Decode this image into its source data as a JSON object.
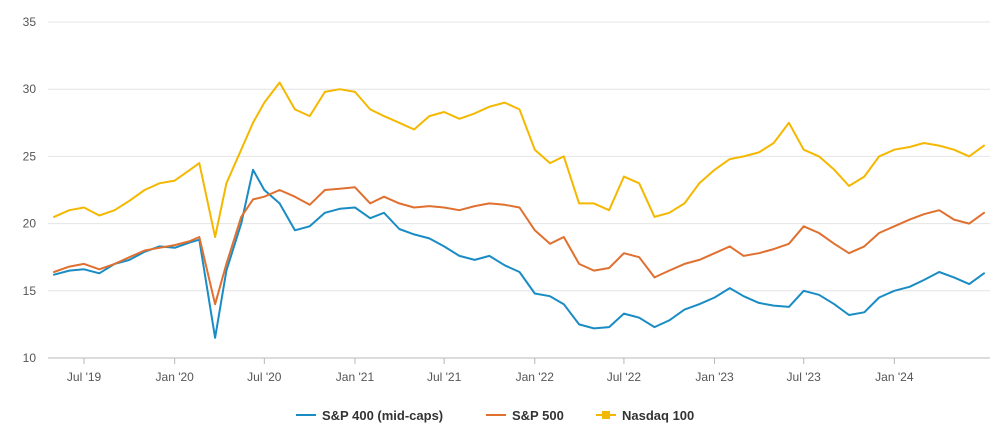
{
  "chart_data": {
    "type": "line",
    "title": "",
    "xlabel": "",
    "ylabel": "",
    "ylim": [
      10,
      35
    ],
    "yticks": [
      10,
      15,
      20,
      25,
      30,
      35
    ],
    "grid": "horizontal",
    "legend_position": "bottom-center",
    "xticks": [
      {
        "label": "Jul '19",
        "date": "2019-07-01"
      },
      {
        "label": "Jan '20",
        "date": "2020-01-01"
      },
      {
        "label": "Jul '20",
        "date": "2020-07-01"
      },
      {
        "label": "Jan '21",
        "date": "2021-01-01"
      },
      {
        "label": "Jul '21",
        "date": "2021-07-01"
      },
      {
        "label": "Jan '22",
        "date": "2022-01-01"
      },
      {
        "label": "Jul '22",
        "date": "2022-07-01"
      },
      {
        "label": "Jan '23",
        "date": "2023-01-01"
      },
      {
        "label": "Jul '23",
        "date": "2023-07-01"
      },
      {
        "label": "Jan '24",
        "date": "2024-01-01"
      }
    ],
    "x": [
      "2019-05-01",
      "2019-06-01",
      "2019-07-01",
      "2019-08-01",
      "2019-09-01",
      "2019-10-01",
      "2019-11-01",
      "2019-12-01",
      "2020-01-01",
      "2020-02-01",
      "2020-02-20",
      "2020-03-23",
      "2020-04-15",
      "2020-05-15",
      "2020-06-08",
      "2020-07-01",
      "2020-08-01",
      "2020-09-01",
      "2020-10-01",
      "2020-11-01",
      "2020-12-01",
      "2021-01-01",
      "2021-02-01",
      "2021-03-01",
      "2021-04-01",
      "2021-05-01",
      "2021-06-01",
      "2021-07-01",
      "2021-08-01",
      "2021-09-01",
      "2021-10-01",
      "2021-11-01",
      "2021-12-01",
      "2022-01-01",
      "2022-02-01",
      "2022-03-01",
      "2022-04-01",
      "2022-05-01",
      "2022-06-01",
      "2022-07-01",
      "2022-08-01",
      "2022-09-01",
      "2022-10-01",
      "2022-11-01",
      "2022-12-01",
      "2023-01-01",
      "2023-02-01",
      "2023-03-01",
      "2023-04-01",
      "2023-05-01",
      "2023-06-01",
      "2023-07-01",
      "2023-08-01",
      "2023-09-01",
      "2023-10-01",
      "2023-11-01",
      "2023-12-01",
      "2024-01-01",
      "2024-02-01",
      "2024-03-01",
      "2024-04-01",
      "2024-05-01",
      "2024-06-01",
      "2024-07-01"
    ],
    "series": [
      {
        "name": "S&P 400 (mid-caps)",
        "color": "#1a8cc4",
        "values": [
          16.2,
          16.5,
          16.6,
          16.3,
          17.0,
          17.3,
          17.9,
          18.3,
          18.2,
          18.6,
          18.8,
          11.5,
          16.5,
          20.0,
          24.0,
          22.5,
          21.5,
          19.5,
          19.8,
          20.8,
          21.1,
          21.2,
          20.4,
          20.8,
          19.6,
          19.2,
          18.9,
          18.3,
          17.6,
          17.3,
          17.6,
          16.9,
          16.4,
          14.8,
          14.6,
          14.0,
          12.5,
          12.2,
          12.3,
          13.3,
          13.0,
          12.3,
          12.8,
          13.6,
          14.0,
          14.5,
          15.2,
          14.6,
          14.1,
          13.9,
          13.8,
          15.0,
          14.7,
          14.0,
          13.2,
          13.4,
          14.5,
          15.0,
          15.3,
          15.8,
          16.4,
          16.0,
          15.5,
          16.3
        ]
      },
      {
        "name": "S&P 500",
        "color": "#e07030",
        "values": [
          16.4,
          16.8,
          17.0,
          16.6,
          17.0,
          17.5,
          18.0,
          18.2,
          18.4,
          18.7,
          19.0,
          14.0,
          17.0,
          20.5,
          21.8,
          22.0,
          22.5,
          22.0,
          21.4,
          22.5,
          22.6,
          22.7,
          21.5,
          22.0,
          21.5,
          21.2,
          21.3,
          21.2,
          21.0,
          21.3,
          21.5,
          21.4,
          21.2,
          19.5,
          18.5,
          19.0,
          17.0,
          16.5,
          16.7,
          17.8,
          17.5,
          16.0,
          16.5,
          17.0,
          17.3,
          17.8,
          18.3,
          17.6,
          17.8,
          18.1,
          18.5,
          19.8,
          19.3,
          18.5,
          17.8,
          18.3,
          19.3,
          19.8,
          20.3,
          20.7,
          21.0,
          20.3,
          20.0,
          20.8
        ]
      },
      {
        "name": "Nasdaq 100",
        "color": "#f5b800",
        "values": [
          20.5,
          21.0,
          21.2,
          20.6,
          21.0,
          21.7,
          22.5,
          23.0,
          23.2,
          24.0,
          24.5,
          19.0,
          23.0,
          25.5,
          27.5,
          29.0,
          30.5,
          28.5,
          28.0,
          29.8,
          30.0,
          29.8,
          28.5,
          28.0,
          27.5,
          27.0,
          28.0,
          28.3,
          27.8,
          28.2,
          28.7,
          29.0,
          28.5,
          25.5,
          24.5,
          25.0,
          21.5,
          21.5,
          21.0,
          23.5,
          23.0,
          20.5,
          20.8,
          21.5,
          23.0,
          24.0,
          24.8,
          25.0,
          25.3,
          26.0,
          27.5,
          25.5,
          25.0,
          24.0,
          22.8,
          23.5,
          25.0,
          25.5,
          25.7,
          26.0,
          25.8,
          25.5,
          25.0,
          25.8
        ]
      }
    ]
  }
}
